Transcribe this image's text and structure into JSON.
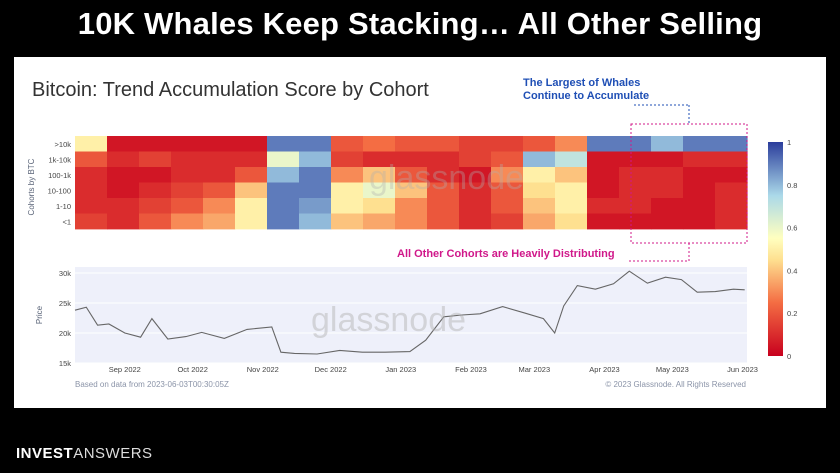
{
  "headline": "10K Whales Keep Stacking… All Other Selling",
  "chart": {
    "title": "Bitcoin: Trend Accumulation Score by Cohort",
    "callout_top_line1": "The Largest of Whales",
    "callout_top_line2": "Continue to Accumulate",
    "callout_bottom": "All Other Cohorts are Heavily Distributing",
    "watermark": "glassnode",
    "footer_left": "Based on data from 2023-06-03T00:30:05Z",
    "footer_right": "© 2023 Glassnode. All Rights Reserved",
    "colors": {
      "accumulate": "#2b4fb0",
      "distribute": "#d7191c",
      "neutral": "#fff6c0",
      "price_bg": "#eef0fa",
      "price_line": "#666666"
    }
  },
  "chart_data": [
    {
      "type": "heatmap",
      "title": "Bitcoin: Trend Accumulation Score by Cohort",
      "ylabel": "Cohorts by BTC",
      "rows": [
        ">10k",
        "1k-10k",
        "100-1k",
        "10-100",
        "1-10",
        "<1"
      ],
      "x": [
        "2022-08-10",
        "2022-08-25",
        "2022-09-10",
        "2022-09-25",
        "2022-10-10",
        "2022-10-25",
        "2022-11-10",
        "2022-11-25",
        "2022-12-10",
        "2022-12-25",
        "2023-01-10",
        "2023-01-25",
        "2023-02-10",
        "2023-02-25",
        "2023-03-10",
        "2023-03-25",
        "2023-04-10",
        "2023-04-25",
        "2023-05-10",
        "2023-05-25",
        "2023-06-02"
      ],
      "values": [
        [
          0.5,
          0.05,
          0.05,
          0.05,
          0.05,
          0.05,
          0.9,
          0.9,
          0.2,
          0.25,
          0.2,
          0.2,
          0.15,
          0.15,
          0.2,
          0.3,
          0.9,
          0.9,
          0.8,
          0.9,
          0.9
        ],
        [
          0.2,
          0.1,
          0.15,
          0.1,
          0.1,
          0.1,
          0.6,
          0.8,
          0.15,
          0.1,
          0.1,
          0.1,
          0.15,
          0.2,
          0.8,
          0.7,
          0.05,
          0.05,
          0.05,
          0.1,
          0.1
        ],
        [
          0.1,
          0.05,
          0.05,
          0.1,
          0.1,
          0.2,
          0.8,
          0.9,
          0.3,
          0.4,
          0.2,
          0.1,
          0.05,
          0.3,
          0.5,
          0.4,
          0.05,
          0.1,
          0.1,
          0.05,
          0.05
        ],
        [
          0.1,
          0.05,
          0.1,
          0.15,
          0.2,
          0.4,
          0.9,
          0.9,
          0.5,
          0.6,
          0.4,
          0.2,
          0.1,
          0.2,
          0.45,
          0.5,
          0.05,
          0.1,
          0.1,
          0.05,
          0.1
        ],
        [
          0.1,
          0.1,
          0.15,
          0.2,
          0.3,
          0.5,
          0.9,
          0.85,
          0.5,
          0.45,
          0.3,
          0.2,
          0.1,
          0.2,
          0.4,
          0.5,
          0.1,
          0.1,
          0.05,
          0.05,
          0.1
        ],
        [
          0.15,
          0.1,
          0.2,
          0.3,
          0.35,
          0.5,
          0.9,
          0.8,
          0.4,
          0.35,
          0.3,
          0.2,
          0.1,
          0.15,
          0.35,
          0.45,
          0.05,
          0.05,
          0.05,
          0.05,
          0.1
        ]
      ],
      "colorbar": {
        "min": 0,
        "max": 1,
        "ticks": [
          "1",
          "0.8",
          "0.6",
          "0.4",
          "0.2",
          "0"
        ]
      }
    },
    {
      "type": "line",
      "ylabel": "Price",
      "yticks": [
        "30k",
        "25k",
        "20k",
        "15k"
      ],
      "ylim": [
        15000,
        31000
      ],
      "xticks": [
        "Sep 2022",
        "Oct 2022",
        "Nov 2022",
        "Dec 2022",
        "Jan 2023",
        "Feb 2023",
        "Mar 2023",
        "Apr 2023",
        "May 2023",
        "Jun 2023"
      ],
      "series": [
        {
          "x": [
            "2022-08-10",
            "2022-08-15",
            "2022-08-20",
            "2022-08-25",
            "2022-09-01",
            "2022-09-08",
            "2022-09-13",
            "2022-09-20",
            "2022-09-28",
            "2022-10-05",
            "2022-10-15",
            "2022-10-25",
            "2022-11-05",
            "2022-11-09",
            "2022-11-15",
            "2022-11-25",
            "2022-12-05",
            "2022-12-15",
            "2022-12-25",
            "2023-01-05",
            "2023-01-12",
            "2023-01-20",
            "2023-01-28",
            "2023-02-05",
            "2023-02-15",
            "2023-02-25",
            "2023-03-05",
            "2023-03-10",
            "2023-03-14",
            "2023-03-20",
            "2023-03-28",
            "2023-04-05",
            "2023-04-12",
            "2023-04-20",
            "2023-04-28",
            "2023-05-05",
            "2023-05-12",
            "2023-05-20",
            "2023-05-28",
            "2023-06-02"
          ],
          "values": [
            23800,
            24300,
            21300,
            21500,
            20000,
            19300,
            22400,
            19000,
            19400,
            20100,
            19100,
            20600,
            21000,
            16800,
            16600,
            16500,
            17100,
            16800,
            16800,
            16900,
            18800,
            22700,
            23000,
            23200,
            24400,
            23300,
            22400,
            20000,
            24500,
            27900,
            27300,
            28200,
            30300,
            28300,
            29300,
            28900,
            26800,
            26900,
            27300,
            27200
          ]
        }
      ]
    }
  ],
  "brand": {
    "strong": "INVEST",
    "light": "ANSWERS"
  }
}
